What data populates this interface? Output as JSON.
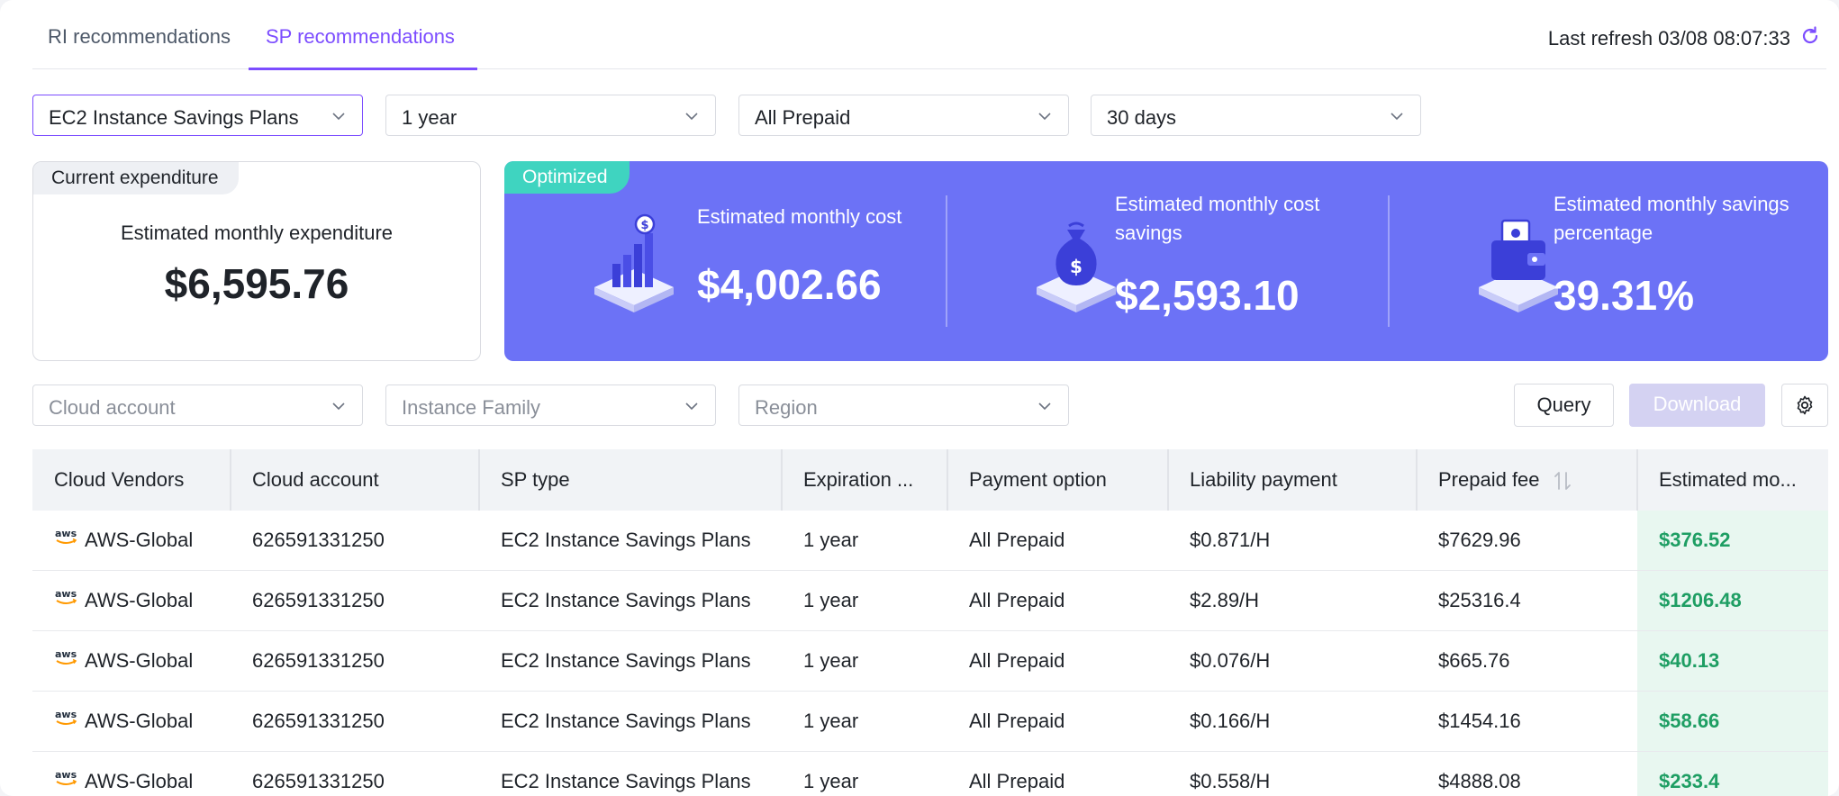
{
  "tabs": [
    {
      "label": "RI recommendations",
      "active": false
    },
    {
      "label": "SP recommendations",
      "active": true
    }
  ],
  "refresh": {
    "text": "Last refresh 03/08 08:07:33"
  },
  "filters": {
    "plan_type": "EC2 Instance Savings Plans",
    "term": "1 year",
    "payment": "All Prepaid",
    "lookback": "30 days"
  },
  "current": {
    "tag": "Current expenditure",
    "label": "Estimated monthly expenditure",
    "value": "$6,595.76"
  },
  "optimized": {
    "tag": "Optimized",
    "metrics": [
      {
        "label": "Estimated monthly cost",
        "value": "$4,002.66",
        "icon": "bar-chart-coin-icon"
      },
      {
        "label": "Estimated monthly cost savings",
        "value": "$2,593.10",
        "icon": "money-bag-icon"
      },
      {
        "label": "Estimated monthly savings percentage",
        "value": "39.31%",
        "icon": "wallet-card-icon"
      }
    ]
  },
  "search": {
    "cloud_account": "Cloud account",
    "instance_family": "Instance Family",
    "region": "Region"
  },
  "actions": {
    "query": "Query",
    "download": "Download"
  },
  "table": {
    "columns": [
      "Cloud Vendors",
      "Cloud account",
      "SP type",
      "Expiration ...",
      "Payment option",
      "Liability payment",
      "Prepaid fee",
      "Estimated mo..."
    ],
    "rows": [
      {
        "vendor": "AWS-Global",
        "account": "626591331250",
        "sp_type": "EC2 Instance Savings Plans",
        "expiration": "1 year",
        "payment": "All Prepaid",
        "liability": "$0.871/H",
        "prepaid": "$7629.96",
        "estimated": "$376.52"
      },
      {
        "vendor": "AWS-Global",
        "account": "626591331250",
        "sp_type": "EC2 Instance Savings Plans",
        "expiration": "1 year",
        "payment": "All Prepaid",
        "liability": "$2.89/H",
        "prepaid": "$25316.4",
        "estimated": "$1206.48"
      },
      {
        "vendor": "AWS-Global",
        "account": "626591331250",
        "sp_type": "EC2 Instance Savings Plans",
        "expiration": "1 year",
        "payment": "All Prepaid",
        "liability": "$0.076/H",
        "prepaid": "$665.76",
        "estimated": "$40.13"
      },
      {
        "vendor": "AWS-Global",
        "account": "626591331250",
        "sp_type": "EC2 Instance Savings Plans",
        "expiration": "1 year",
        "payment": "All Prepaid",
        "liability": "$0.166/H",
        "prepaid": "$1454.16",
        "estimated": "$58.66"
      },
      {
        "vendor": "AWS-Global",
        "account": "626591331250",
        "sp_type": "EC2 Instance Savings Plans",
        "expiration": "1 year",
        "payment": "All Prepaid",
        "liability": "$0.558/H",
        "prepaid": "$4888.08",
        "estimated": "$233.4"
      }
    ]
  },
  "colors": {
    "accent": "#7c4dff",
    "optimized_bg": "#6c72f6",
    "optimized_tag": "#3fd4c0",
    "positive": "#1e9e63"
  }
}
